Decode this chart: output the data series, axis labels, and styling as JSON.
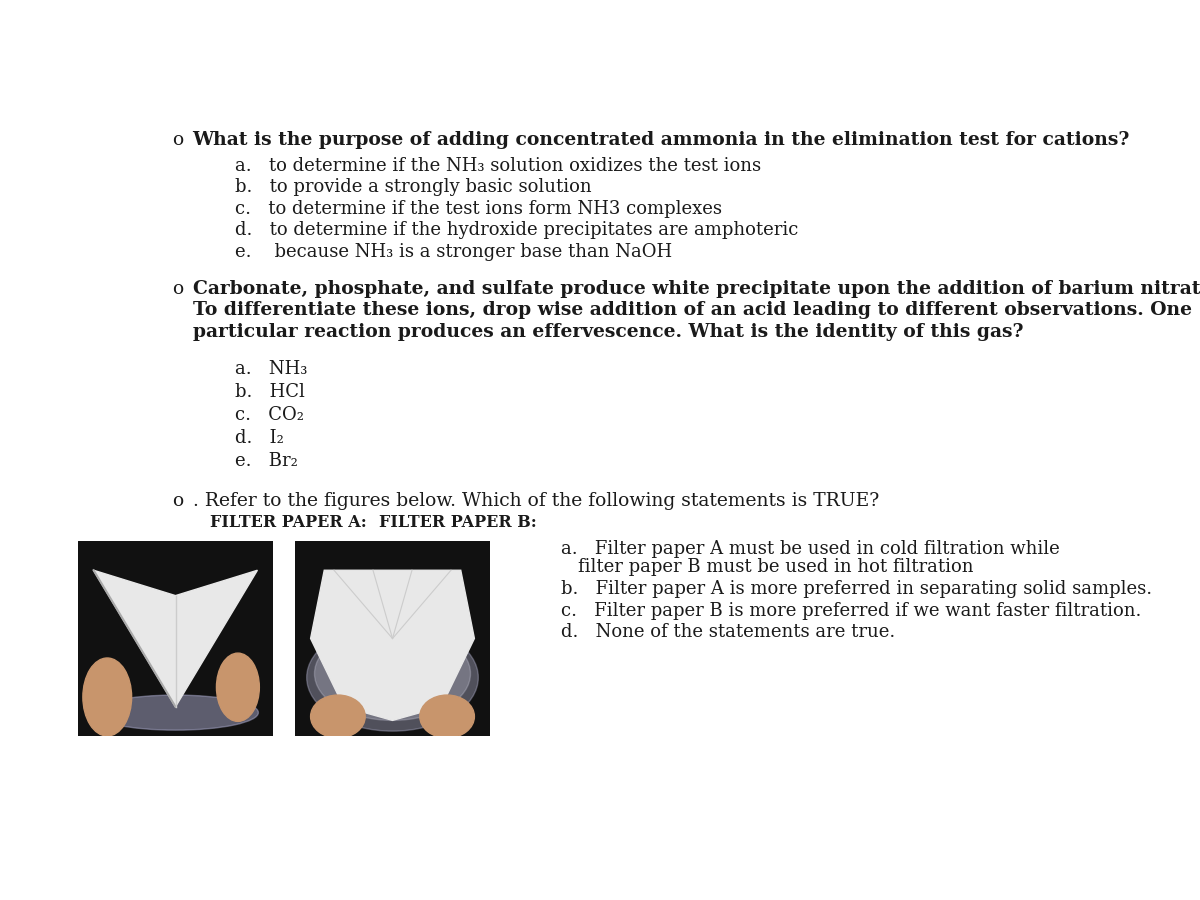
{
  "bg_color": "#ffffff",
  "text_color": "#1a1a1a",
  "q1_bullet": "o",
  "q1_question": "What is the purpose of adding concentrated ammonia in the elimination test for cations?",
  "q1_options": [
    "a. to determine if the NH₃ solution oxidizes the test ions",
    "b. to provide a strongly basic solution",
    "c. to determine if the test ions form NH3 complexes",
    "d. to determine if the hydroxide precipitates are amphoteric",
    "e.  because NH₃ is a stronger base than NaOH"
  ],
  "q2_bullet": "o",
  "q2_question_line1": "Carbonate, phosphate, and sulfate produce white precipitate upon the addition of barium nitrate.",
  "q2_question_line2": "To differentiate these ions, drop wise addition of an acid leading to different observations. One",
  "q2_question_line3": "particular reaction produces an effervescence. What is the identity of this gas?",
  "q2_options_line1": "a.  NH₃",
  "q2_options_line2": "b.  HCl",
  "q2_options_line3": "c.  CO₂",
  "q2_options_line4": "d.  I₂",
  "q2_options_line5": "e.  Br₂",
  "q3_bullet": "o",
  "q3_question": ". Refer to the figures below. Which of the following statements is TRUE?",
  "q3_label_a": "FILTER PAPER A:",
  "q3_label_b": "FILTER PAPER B:",
  "q3_options": [
    "a. Filter paper A must be used in cold filtration while\n      filter paper B must be used in hot filtration",
    "b. Filter paper A is more preferred in separating solid samples.",
    "c. Filter paper B is more preferred if we want faster filtration.",
    "d. None of the statements are true."
  ],
  "font_size_question": 13.5,
  "font_size_option": 13.0,
  "font_size_label": 11.5,
  "font_family": "serif"
}
